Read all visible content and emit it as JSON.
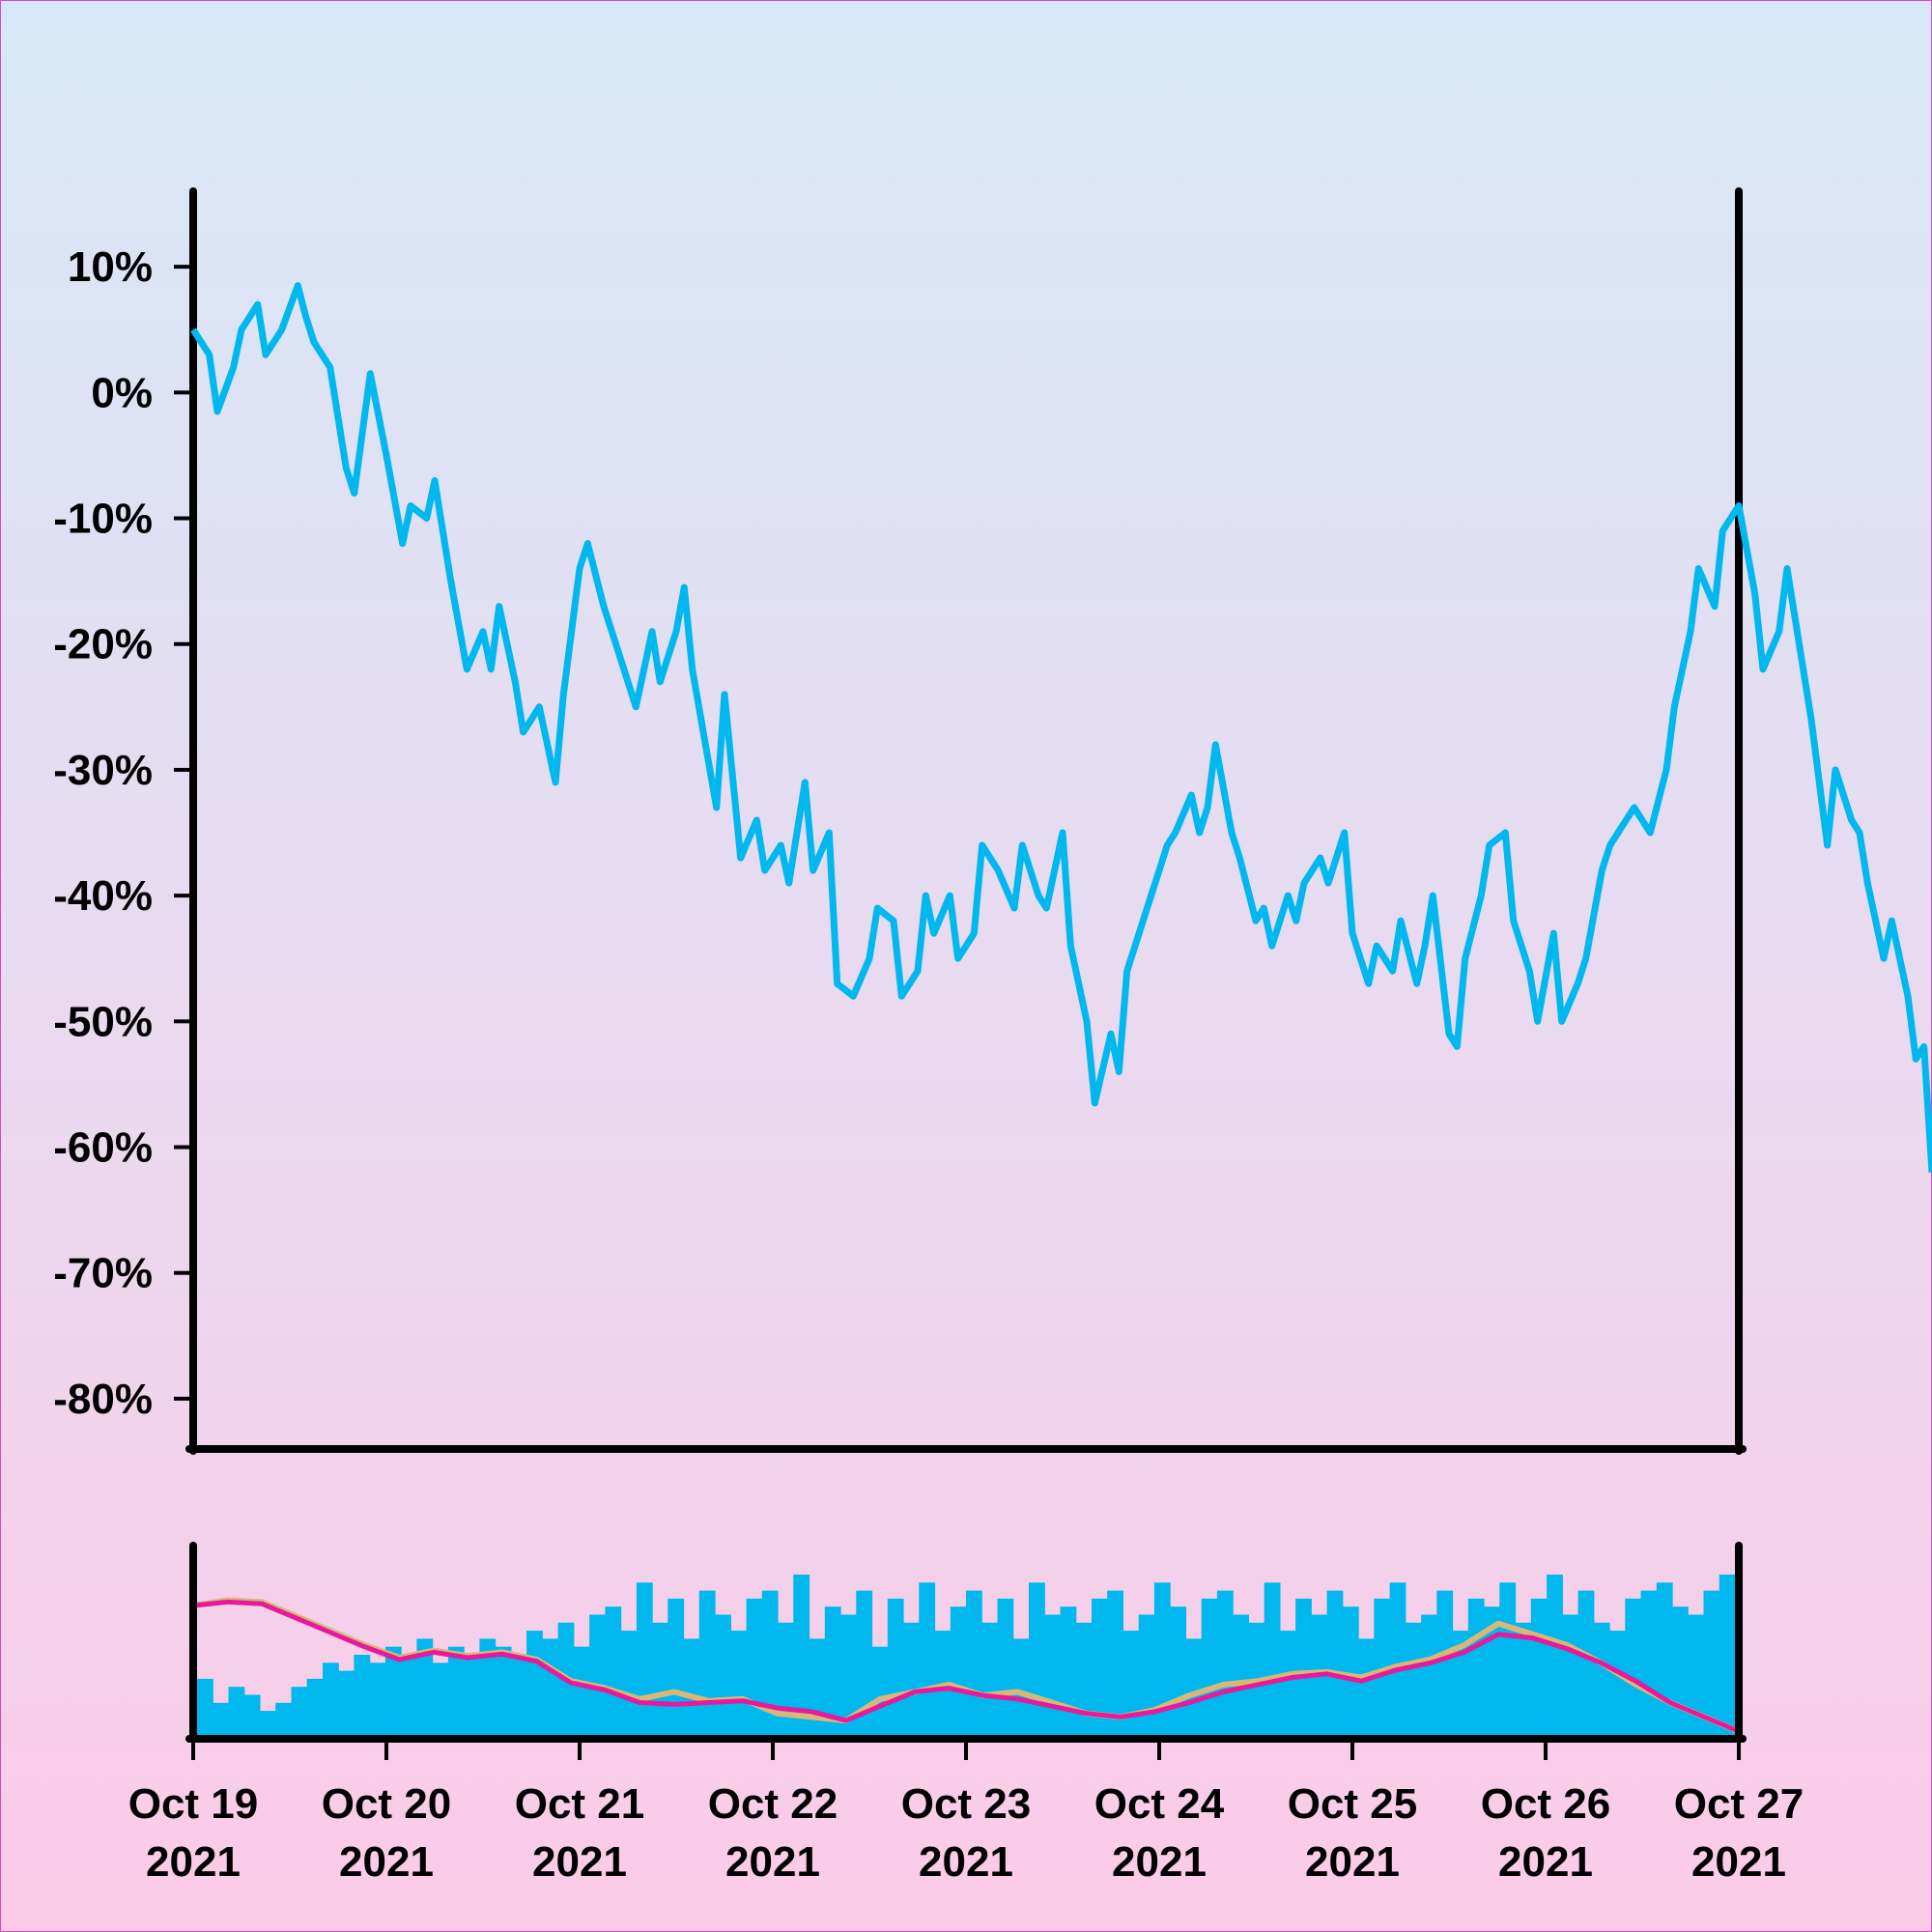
{
  "chart_data": {
    "type": "line",
    "title": "",
    "xlabel": "",
    "ylabel": "",
    "x_range": [
      "2021-10-19",
      "2021-10-27"
    ],
    "x_ticks": [
      {
        "date": "2021-10-19",
        "label_line1": "Oct 19",
        "label_line2": "2021"
      },
      {
        "date": "2021-10-20",
        "label_line1": "Oct 20",
        "label_line2": "2021"
      },
      {
        "date": "2021-10-21",
        "label_line1": "Oct 21",
        "label_line2": "2021"
      },
      {
        "date": "2021-10-22",
        "label_line1": "Oct 22",
        "label_line2": "2021"
      },
      {
        "date": "2021-10-23",
        "label_line1": "Oct 23",
        "label_line2": "2021"
      },
      {
        "date": "2021-10-24",
        "label_line1": "Oct 24",
        "label_line2": "2021"
      },
      {
        "date": "2021-10-25",
        "label_line1": "Oct 25",
        "label_line2": "2021"
      },
      {
        "date": "2021-10-26",
        "label_line1": "Oct 26",
        "label_line2": "2021"
      },
      {
        "date": "2021-10-27",
        "label_line1": "Oct 27",
        "label_line2": "2021"
      }
    ],
    "y_ticks": [
      {
        "value": 10,
        "label": "10%"
      },
      {
        "value": 0,
        "label": "0%"
      },
      {
        "value": -10,
        "label": "-10%"
      },
      {
        "value": -20,
        "label": "-20%"
      },
      {
        "value": -30,
        "label": "-30%"
      },
      {
        "value": -40,
        "label": "-40%"
      },
      {
        "value": -50,
        "label": "-50%"
      },
      {
        "value": -60,
        "label": "-60%"
      },
      {
        "value": -70,
        "label": "-70%"
      },
      {
        "value": -80,
        "label": "-80%"
      }
    ],
    "ylim": [
      -84,
      16
    ],
    "grid": false,
    "series": [
      {
        "color": "#00b7ee",
        "points": [
          [
            "2021-10-19T00:00",
            5
          ],
          [
            "2021-10-19T02:00",
            3
          ],
          [
            "2021-10-19T03:00",
            -1.5
          ],
          [
            "2021-10-19T05:00",
            2
          ],
          [
            "2021-10-19T06:00",
            5
          ],
          [
            "2021-10-19T08:00",
            7
          ],
          [
            "2021-10-19T09:00",
            3
          ],
          [
            "2021-10-19T11:00",
            5
          ],
          [
            "2021-10-19T13:00",
            8.5
          ],
          [
            "2021-10-19T14:00",
            6
          ],
          [
            "2021-10-19T15:00",
            4
          ],
          [
            "2021-10-19T17:00",
            2
          ],
          [
            "2021-10-19T19:00",
            -6
          ],
          [
            "2021-10-19T20:00",
            -8
          ],
          [
            "2021-10-19T22:00",
            1.5
          ],
          [
            "2021-10-20T00:00",
            -5
          ],
          [
            "2021-10-20T02:00",
            -12
          ],
          [
            "2021-10-20T03:00",
            -9
          ],
          [
            "2021-10-20T05:00",
            -10
          ],
          [
            "2021-10-20T06:00",
            -7
          ],
          [
            "2021-10-20T08:00",
            -15
          ],
          [
            "2021-10-20T10:00",
            -22
          ],
          [
            "2021-10-20T12:00",
            -19
          ],
          [
            "2021-10-20T13:00",
            -22
          ],
          [
            "2021-10-20T14:00",
            -17
          ],
          [
            "2021-10-20T16:00",
            -23
          ],
          [
            "2021-10-20T17:00",
            -27
          ],
          [
            "2021-10-20T19:00",
            -25
          ],
          [
            "2021-10-20T21:00",
            -31
          ],
          [
            "2021-10-20T22:00",
            -24
          ],
          [
            "2021-10-21T00:00",
            -14
          ],
          [
            "2021-10-21T01:00",
            -12
          ],
          [
            "2021-10-21T03:00",
            -17
          ],
          [
            "2021-10-21T05:00",
            -21
          ],
          [
            "2021-10-21T07:00",
            -25
          ],
          [
            "2021-10-21T09:00",
            -19
          ],
          [
            "2021-10-21T10:00",
            -23
          ],
          [
            "2021-10-21T12:00",
            -19
          ],
          [
            "2021-10-21T13:00",
            -15.5
          ],
          [
            "2021-10-21T14:00",
            -22
          ],
          [
            "2021-10-21T17:00",
            -33
          ],
          [
            "2021-10-21T18:00",
            -24
          ],
          [
            "2021-10-21T20:00",
            -37
          ],
          [
            "2021-10-21T22:00",
            -34
          ],
          [
            "2021-10-21T23:00",
            -38
          ],
          [
            "2021-10-22T01:00",
            -36
          ],
          [
            "2021-10-22T02:00",
            -39
          ],
          [
            "2021-10-22T04:00",
            -31
          ],
          [
            "2021-10-22T05:00",
            -38
          ],
          [
            "2021-10-22T07:00",
            -35
          ],
          [
            "2021-10-22T08:00",
            -47
          ],
          [
            "2021-10-22T10:00",
            -48
          ],
          [
            "2021-10-22T12:00",
            -45
          ],
          [
            "2021-10-22T13:00",
            -41
          ],
          [
            "2021-10-22T15:00",
            -42
          ],
          [
            "2021-10-22T16:00",
            -48
          ],
          [
            "2021-10-22T18:00",
            -46
          ],
          [
            "2021-10-22T19:00",
            -40
          ],
          [
            "2021-10-22T20:00",
            -43
          ],
          [
            "2021-10-22T22:00",
            -40
          ],
          [
            "2021-10-22T23:00",
            -45
          ],
          [
            "2021-10-23T01:00",
            -43
          ],
          [
            "2021-10-23T02:00",
            -36
          ],
          [
            "2021-10-23T04:00",
            -38
          ],
          [
            "2021-10-23T06:00",
            -41
          ],
          [
            "2021-10-23T07:00",
            -36
          ],
          [
            "2021-10-23T09:00",
            -40
          ],
          [
            "2021-10-23T10:00",
            -41
          ],
          [
            "2021-10-23T12:00",
            -35
          ],
          [
            "2021-10-23T13:00",
            -44
          ],
          [
            "2021-10-23T15:00",
            -50
          ],
          [
            "2021-10-23T16:00",
            -56.5
          ],
          [
            "2021-10-23T18:00",
            -51
          ],
          [
            "2021-10-23T19:00",
            -54
          ],
          [
            "2021-10-23T20:00",
            -46
          ],
          [
            "2021-10-23T22:00",
            -42
          ],
          [
            "2021-10-24T00:00",
            -38
          ],
          [
            "2021-10-24T01:00",
            -36
          ],
          [
            "2021-10-24T02:00",
            -35
          ],
          [
            "2021-10-24T04:00",
            -32
          ],
          [
            "2021-10-24T05:00",
            -35
          ],
          [
            "2021-10-24T06:00",
            -33
          ],
          [
            "2021-10-24T07:00",
            -28
          ],
          [
            "2021-10-24T09:00",
            -35
          ],
          [
            "2021-10-24T10:00",
            -37
          ],
          [
            "2021-10-24T12:00",
            -42
          ],
          [
            "2021-10-24T13:00",
            -41
          ],
          [
            "2021-10-24T14:00",
            -44
          ],
          [
            "2021-10-24T16:00",
            -40
          ],
          [
            "2021-10-24T17:00",
            -42
          ],
          [
            "2021-10-24T18:00",
            -39
          ],
          [
            "2021-10-24T20:00",
            -37
          ],
          [
            "2021-10-24T21:00",
            -39
          ],
          [
            "2021-10-24T23:00",
            -35
          ],
          [
            "2021-10-25T00:00",
            -43
          ],
          [
            "2021-10-25T02:00",
            -47
          ],
          [
            "2021-10-25T03:00",
            -44
          ],
          [
            "2021-10-25T05:00",
            -46
          ],
          [
            "2021-10-25T06:00",
            -42
          ],
          [
            "2021-10-25T08:00",
            -47
          ],
          [
            "2021-10-25T09:00",
            -44
          ],
          [
            "2021-10-25T10:00",
            -40
          ],
          [
            "2021-10-25T12:00",
            -51
          ],
          [
            "2021-10-25T13:00",
            -52
          ],
          [
            "2021-10-25T14:00",
            -45
          ],
          [
            "2021-10-25T16:00",
            -40
          ],
          [
            "2021-10-25T17:00",
            -36
          ],
          [
            "2021-10-25T19:00",
            -35
          ],
          [
            "2021-10-25T20:00",
            -42
          ],
          [
            "2021-10-25T22:00",
            -46
          ],
          [
            "2021-10-25T23:00",
            -50
          ],
          [
            "2021-10-26T01:00",
            -43
          ],
          [
            "2021-10-26T02:00",
            -50
          ],
          [
            "2021-10-26T04:00",
            -47
          ],
          [
            "2021-10-26T05:00",
            -45
          ],
          [
            "2021-10-26T07:00",
            -38
          ],
          [
            "2021-10-26T08:00",
            -36
          ],
          [
            "2021-10-26T10:00",
            -34
          ],
          [
            "2021-10-26T11:00",
            -33
          ],
          [
            "2021-10-26T13:00",
            -35
          ],
          [
            "2021-10-26T15:00",
            -30
          ],
          [
            "2021-10-26T16:00",
            -25
          ],
          [
            "2021-10-26T18:00",
            -19
          ],
          [
            "2021-10-26T19:00",
            -14
          ],
          [
            "2021-10-26T21:00",
            -17
          ],
          [
            "2021-10-26T22:00",
            -11
          ],
          [
            "2021-10-27T00:00",
            -9
          ],
          [
            "2021-10-27T02:00",
            -16
          ],
          [
            "2021-10-27T03:00",
            -22
          ],
          [
            "2021-10-27T05:00",
            -19
          ],
          [
            "2021-10-27T06:00",
            -14
          ],
          [
            "2021-10-27T08:00",
            -22
          ],
          [
            "2021-10-27T09:00",
            -26
          ],
          [
            "2021-10-27T11:00",
            -36
          ],
          [
            "2021-10-27T12:00",
            -30
          ],
          [
            "2021-10-27T14:00",
            -34
          ],
          [
            "2021-10-27T15:00",
            -35
          ],
          [
            "2021-10-27T16:00",
            -39
          ],
          [
            "2021-10-27T18:00",
            -45
          ],
          [
            "2021-10-27T19:00",
            -42
          ],
          [
            "2021-10-27T21:00",
            -48
          ],
          [
            "2021-10-27T22:00",
            -53
          ],
          [
            "2021-10-27T23:00",
            -52
          ],
          [
            "2021-10-28T00:00",
            -62
          ]
        ]
      }
    ],
    "lower_panel": {
      "type": "bar+line",
      "bar_color": "#00b7ee",
      "line_colors": [
        "#d7b878",
        "#e8199a"
      ],
      "bars": [
        0.35,
        0.2,
        0.3,
        0.25,
        0.15,
        0.2,
        0.3,
        0.35,
        0.45,
        0.4,
        0.5,
        0.45,
        0.55,
        0.5,
        0.6,
        0.45,
        0.55,
        0.5,
        0.6,
        0.55,
        0.5,
        0.65,
        0.6,
        0.7,
        0.55,
        0.75,
        0.8,
        0.65,
        0.95,
        0.7,
        0.85,
        0.6,
        0.9,
        0.75,
        0.65,
        0.85,
        0.9,
        0.7,
        1.0,
        0.6,
        0.8,
        0.75,
        0.9,
        0.55,
        0.85,
        0.7,
        0.95,
        0.65,
        0.8,
        0.9,
        0.7,
        0.85,
        0.6,
        0.95,
        0.75,
        0.8,
        0.7,
        0.85,
        0.9,
        0.65,
        0.75,
        0.95,
        0.8,
        0.6,
        0.85,
        0.9,
        0.75,
        0.7,
        0.95,
        0.65,
        0.85,
        0.75,
        0.9,
        0.8,
        0.6,
        0.85,
        0.95,
        0.7,
        0.75,
        0.9,
        0.65,
        0.85,
        0.8,
        0.95,
        0.7,
        0.85,
        1.0,
        0.75,
        0.9,
        0.7,
        0.65,
        0.85,
        0.9,
        0.95,
        0.8,
        0.75,
        0.9,
        1.0
      ],
      "line1": [
        0.72,
        0.75,
        0.74,
        0.66,
        0.58,
        0.5,
        0.43,
        0.47,
        0.44,
        0.46,
        0.42,
        0.3,
        0.26,
        0.2,
        0.24,
        0.19,
        0.2,
        0.12,
        0.1,
        0.08,
        0.2,
        0.24,
        0.28,
        0.22,
        0.24,
        0.18,
        0.12,
        0.1,
        0.14,
        0.22,
        0.28,
        0.3,
        0.34,
        0.35,
        0.32,
        0.38,
        0.42,
        0.5,
        0.62,
        0.56,
        0.5,
        0.4,
        0.28,
        0.18,
        0.1,
        0.02
      ],
      "line2": [
        0.72,
        0.74,
        0.73,
        0.65,
        0.57,
        0.49,
        0.42,
        0.46,
        0.43,
        0.45,
        0.41,
        0.29,
        0.25,
        0.18,
        0.17,
        0.18,
        0.19,
        0.15,
        0.13,
        0.08,
        0.16,
        0.24,
        0.26,
        0.22,
        0.2,
        0.16,
        0.12,
        0.1,
        0.13,
        0.18,
        0.24,
        0.28,
        0.32,
        0.34,
        0.3,
        0.36,
        0.4,
        0.46,
        0.56,
        0.54,
        0.48,
        0.4,
        0.3,
        0.18,
        0.1,
        0.02
      ]
    }
  }
}
